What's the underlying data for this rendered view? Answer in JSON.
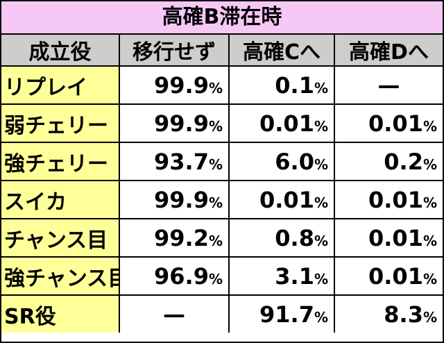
{
  "title": "高確B滞在時",
  "table": {
    "header": [
      "成立役",
      "移行せず",
      "高確Cへ",
      "高確Dへ"
    ],
    "rows": [
      [
        "リプレイ",
        "99.9%",
        "0.1%",
        "—"
      ],
      [
        "弱チェリー",
        "99.9%",
        "0.01%",
        "0.01%"
      ],
      [
        "強チェリー",
        "93.7%",
        "6.0%",
        "0.2%"
      ],
      [
        "スイカ",
        "99.9%",
        "0.01%",
        "0.01%"
      ],
      [
        "チャンス目",
        "99.2%",
        "0.8%",
        "0.01%"
      ],
      [
        "強チャンス目",
        "96.9%",
        "3.1%",
        "0.01%"
      ],
      [
        "SR役",
        "—",
        "91.7%",
        "8.3%"
      ]
    ]
  }
}
